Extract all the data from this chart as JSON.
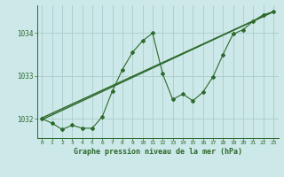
{
  "title": "Graphe pression niveau de la mer (hPa)",
  "background_color": "#cce8e8",
  "grid_color": "#aacccc",
  "line_color": "#2d6a2d",
  "marker_color": "#2d6a2d",
  "xlim": [
    -0.5,
    23.5
  ],
  "ylim": [
    1031.55,
    1034.65
  ],
  "yticks": [
    1032,
    1033,
    1034
  ],
  "xticks": [
    0,
    1,
    2,
    3,
    4,
    5,
    6,
    7,
    8,
    9,
    10,
    11,
    12,
    13,
    14,
    15,
    16,
    17,
    18,
    19,
    20,
    21,
    22,
    23
  ],
  "hours": [
    0,
    1,
    2,
    3,
    4,
    5,
    6,
    7,
    8,
    9,
    10,
    11,
    12,
    13,
    14,
    15,
    16,
    17,
    18,
    19,
    20,
    21,
    22,
    23
  ],
  "pressure": [
    1032.0,
    1031.9,
    1031.75,
    1031.85,
    1031.78,
    1031.78,
    1032.05,
    1032.65,
    1033.15,
    1033.55,
    1033.82,
    1034.0,
    1033.05,
    1032.45,
    1032.58,
    1032.42,
    1032.62,
    1032.98,
    1033.5,
    1033.98,
    1034.08,
    1034.28,
    1034.43,
    1034.5
  ],
  "trend_x": [
    0,
    23
  ],
  "trend_y": [
    1031.98,
    1034.5
  ],
  "trend2_x": [
    0,
    23
  ],
  "trend2_y": [
    1032.02,
    1034.5
  ]
}
